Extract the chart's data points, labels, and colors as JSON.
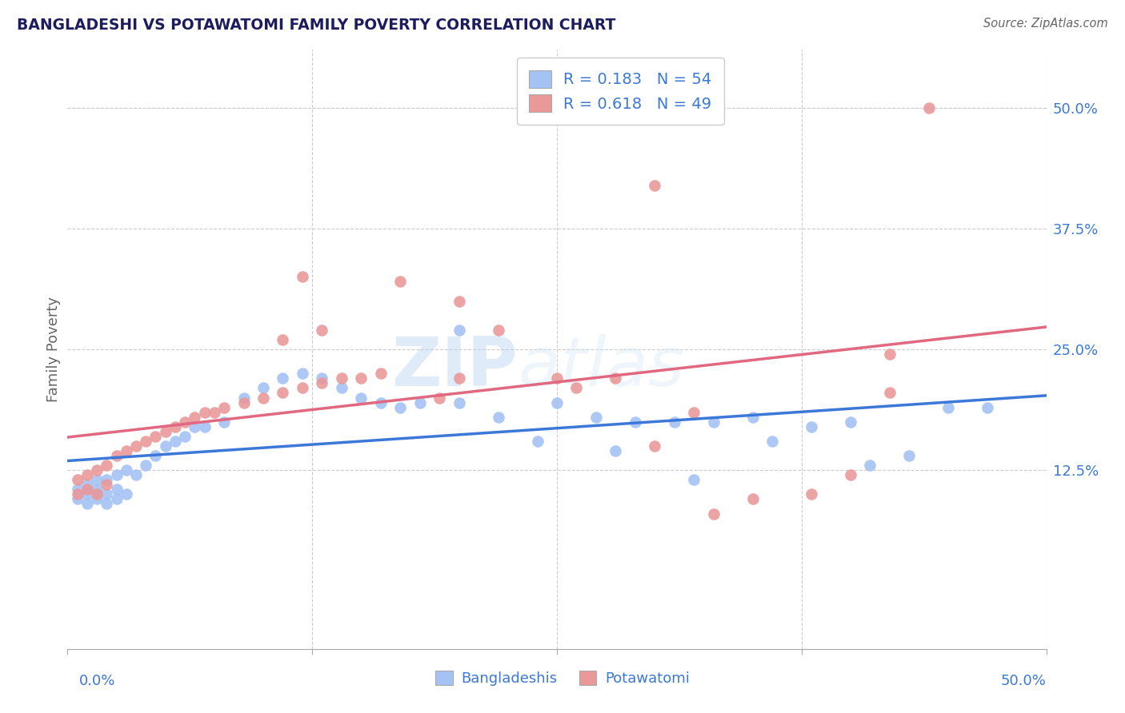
{
  "title": "BANGLADESHI VS POTAWATOMI FAMILY POVERTY CORRELATION CHART",
  "source": "Source: ZipAtlas.com",
  "ylabel": "Family Poverty",
  "yticks": [
    "12.5%",
    "25.0%",
    "37.5%",
    "50.0%"
  ],
  "ytick_vals": [
    0.125,
    0.25,
    0.375,
    0.5
  ],
  "xlim": [
    0.0,
    0.5
  ],
  "ylim": [
    -0.06,
    0.56
  ],
  "legend1_label": "R = 0.183   N = 54",
  "legend2_label": "R = 0.618   N = 49",
  "blue_color": "#a4c2f4",
  "pink_color": "#ea9999",
  "blue_line_color": "#3c78d8",
  "pink_line_color": "#e06880",
  "legend_text_color": "#3c78d8",
  "title_color": "#1c1c5e",
  "watermark_zip": "ZIP",
  "watermark_atlas": "atlas",
  "background_color": "#ffffff",
  "grid_color": "#cccccc",
  "blue_scatter_x": [
    0.005,
    0.01,
    0.015,
    0.02,
    0.025,
    0.005,
    0.01,
    0.015,
    0.02,
    0.025,
    0.03,
    0.01,
    0.015,
    0.02,
    0.025,
    0.03,
    0.035,
    0.04,
    0.045,
    0.05,
    0.055,
    0.06,
    0.065,
    0.07,
    0.08,
    0.09,
    0.1,
    0.11,
    0.12,
    0.13,
    0.14,
    0.15,
    0.16,
    0.17,
    0.18,
    0.2,
    0.22,
    0.25,
    0.27,
    0.29,
    0.31,
    0.33,
    0.35,
    0.38,
    0.4,
    0.43,
    0.45,
    0.28,
    0.32,
    0.36,
    0.2,
    0.24,
    0.41,
    0.47
  ],
  "blue_scatter_y": [
    0.105,
    0.1,
    0.105,
    0.1,
    0.105,
    0.095,
    0.09,
    0.095,
    0.09,
    0.095,
    0.1,
    0.11,
    0.115,
    0.115,
    0.12,
    0.125,
    0.12,
    0.13,
    0.14,
    0.15,
    0.155,
    0.16,
    0.17,
    0.17,
    0.175,
    0.2,
    0.21,
    0.22,
    0.225,
    0.22,
    0.21,
    0.2,
    0.195,
    0.19,
    0.195,
    0.195,
    0.18,
    0.195,
    0.18,
    0.175,
    0.175,
    0.175,
    0.18,
    0.17,
    0.175,
    0.14,
    0.19,
    0.145,
    0.115,
    0.155,
    0.27,
    0.155,
    0.13,
    0.19
  ],
  "pink_scatter_x": [
    0.005,
    0.01,
    0.015,
    0.02,
    0.005,
    0.01,
    0.015,
    0.02,
    0.025,
    0.03,
    0.035,
    0.04,
    0.045,
    0.05,
    0.055,
    0.06,
    0.065,
    0.07,
    0.075,
    0.08,
    0.09,
    0.1,
    0.11,
    0.12,
    0.13,
    0.14,
    0.11,
    0.13,
    0.15,
    0.16,
    0.17,
    0.2,
    0.22,
    0.25,
    0.28,
    0.3,
    0.33,
    0.35,
    0.38,
    0.4,
    0.42,
    0.26,
    0.32,
    0.42,
    0.2,
    0.12,
    0.19,
    0.44,
    0.3
  ],
  "pink_scatter_y": [
    0.1,
    0.105,
    0.1,
    0.11,
    0.115,
    0.12,
    0.125,
    0.13,
    0.14,
    0.145,
    0.15,
    0.155,
    0.16,
    0.165,
    0.17,
    0.175,
    0.18,
    0.185,
    0.185,
    0.19,
    0.195,
    0.2,
    0.205,
    0.21,
    0.215,
    0.22,
    0.26,
    0.27,
    0.22,
    0.225,
    0.32,
    0.22,
    0.27,
    0.22,
    0.22,
    0.15,
    0.08,
    0.095,
    0.1,
    0.12,
    0.245,
    0.21,
    0.185,
    0.205,
    0.3,
    0.325,
    0.2,
    0.5,
    0.42
  ]
}
